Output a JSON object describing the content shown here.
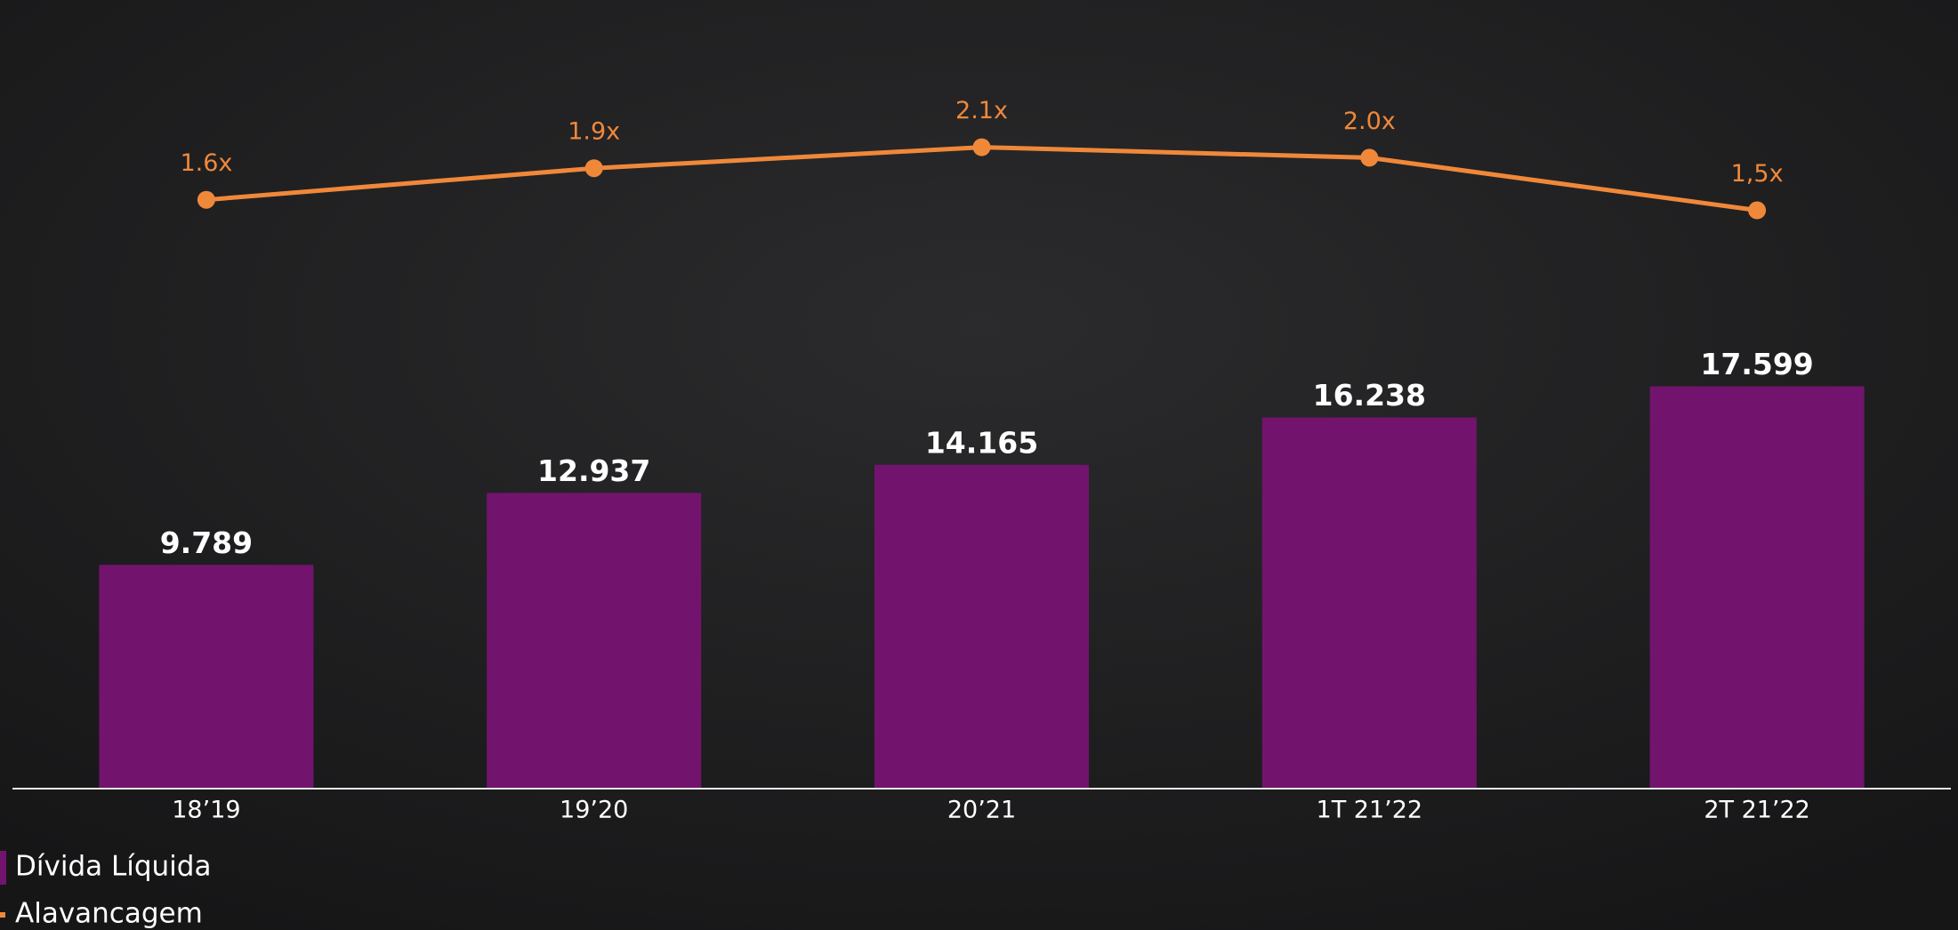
{
  "chart_data": {
    "type": "bar",
    "categories": [
      "18’19",
      "19’20",
      "20’21",
      "1T 21’22",
      "2T 21’22"
    ],
    "ylim": [
      0,
      34500
    ],
    "y2lim": [
      -4,
      3.5
    ],
    "series": [
      {
        "name": "Dívida Líquida",
        "type": "bar",
        "color": "#72146e",
        "values": [
          9789,
          12937,
          14165,
          16238,
          17599
        ],
        "value_labels": [
          "9.789",
          "12.937",
          "14.165",
          "16.238",
          "17.599"
        ]
      },
      {
        "name": "Alavancagem",
        "type": "line",
        "axis": "y2",
        "color": "#f0883a",
        "values": [
          1.6,
          1.9,
          2.1,
          2.0,
          1.5
        ],
        "value_labels": [
          "1.6x",
          "1.9x",
          "2.1x",
          "2.0x",
          "1,5x"
        ]
      }
    ]
  }
}
